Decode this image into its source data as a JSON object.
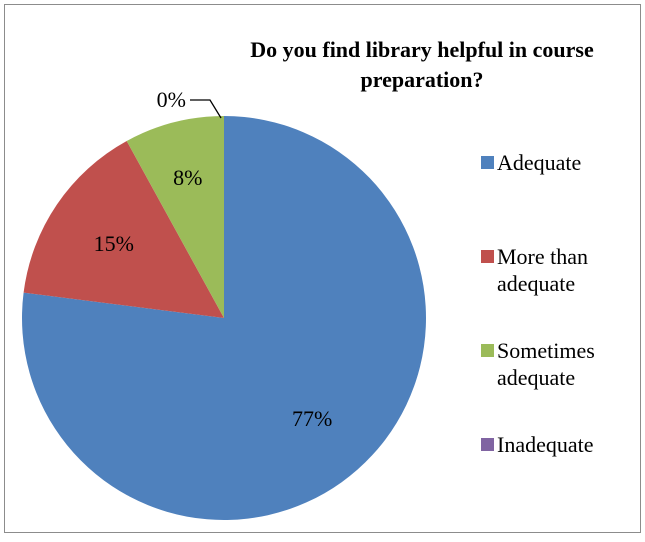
{
  "chart_data": {
    "type": "pie",
    "title": "Do you find library helpful in course preparation?",
    "title_lines": [
      "Do you find library helpful in course",
      "preparation?"
    ],
    "categories": [
      "Adequate",
      "More than adequate",
      "Sometimes adequate",
      "Inadequate"
    ],
    "values": [
      77,
      15,
      8,
      0
    ],
    "labels": [
      "77%",
      "15%",
      "8%",
      "0%"
    ],
    "colors": [
      "#4F81BD",
      "#C0504D",
      "#9BBB59",
      "#8064A2"
    ],
    "legend_lines": [
      [
        "Adequate"
      ],
      [
        "More than",
        "adequate"
      ],
      [
        "Sometimes",
        "adequate"
      ],
      [
        "Inadequate"
      ]
    ],
    "legend_position": "right",
    "start_angle": "12 o'clock",
    "direction": "clockwise"
  }
}
